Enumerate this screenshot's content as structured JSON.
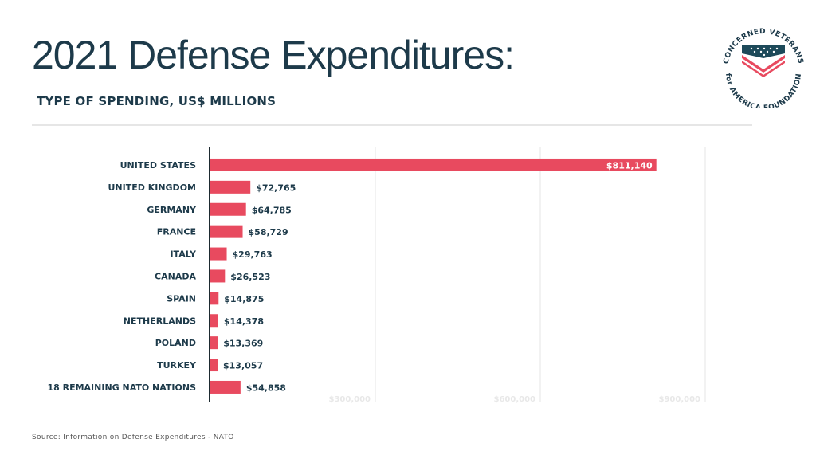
{
  "header": {
    "title": "2021 Defense Expenditures:",
    "subtitle": "TYPE OF SPENDING, US$ MILLIONS"
  },
  "logo": {
    "top_text": "CONCERNED VETERANS",
    "bottom_text": "for AMERICA FOUNDATION",
    "colors": {
      "navy": "#1d4a5a",
      "red": "#e84a5f"
    }
  },
  "footer": {
    "source": "Source: Information on Defense Expenditures - NATO"
  },
  "chart_data": {
    "type": "bar",
    "orientation": "horizontal",
    "title": "2021 Defense Expenditures:",
    "subtitle": "TYPE OF SPENDING, US$ MILLIONS",
    "xlabel": "",
    "ylabel": "",
    "categories": [
      "UNITED STATES",
      "UNITED KINGDOM",
      "GERMANY",
      "FRANCE",
      "ITALY",
      "CANADA",
      "SPAIN",
      "NETHERLANDS",
      "POLAND",
      "TURKEY",
      "18 REMAINING NATO NATIONS"
    ],
    "values": [
      811140,
      72765,
      64785,
      58729,
      29763,
      26523,
      14875,
      14378,
      13369,
      13057,
      54858
    ],
    "value_labels": [
      "$811,140",
      "$72,765",
      "$64,785",
      "$58,729",
      "$29,763",
      "$26,523",
      "$14,875",
      "$14,378",
      "$13,369",
      "$13,057",
      "$54,858"
    ],
    "xlim": [
      0,
      900000
    ],
    "xticks": [
      300000,
      600000,
      900000
    ],
    "xtick_labels": [
      "$300,000",
      "$600,000",
      "$900,000"
    ],
    "grid": true,
    "bar_color": "#e84a5f",
    "legend": "none"
  }
}
